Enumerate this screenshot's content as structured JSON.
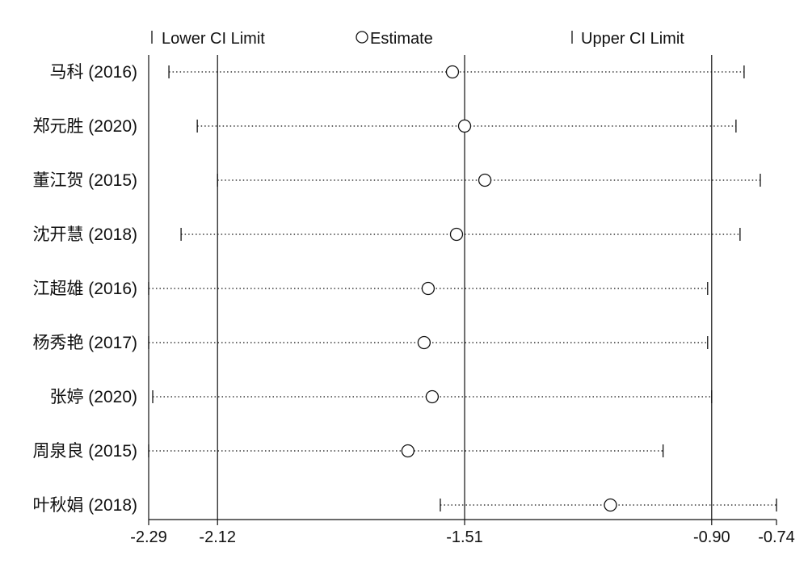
{
  "chart_data": {
    "type": "forest",
    "xlim": [
      -2.29,
      -0.74
    ],
    "x_ticks": [
      -2.29,
      -2.12,
      -1.51,
      -0.9,
      -0.74
    ],
    "x_tick_labels": [
      "-2.29",
      "-2.12",
      "-1.51",
      "-0.90",
      "-0.74"
    ],
    "reference_lines": [
      -2.12,
      -1.51,
      -0.9
    ],
    "legend": {
      "lower": "Lower CI Limit",
      "estimate": "Estimate",
      "upper": "Upper CI Limit"
    },
    "legend_position": "top",
    "studies": [
      {
        "label": "马科 (2016)",
        "lower": -2.24,
        "estimate": -1.54,
        "upper": -0.82
      },
      {
        "label": "郑元胜 (2020)",
        "lower": -2.17,
        "estimate": -1.51,
        "upper": -0.84
      },
      {
        "label": "董江贺 (2015)",
        "lower": -2.12,
        "estimate": -1.46,
        "upper": -0.78
      },
      {
        "label": "沈开慧 (2018)",
        "lower": -2.21,
        "estimate": -1.53,
        "upper": -0.83
      },
      {
        "label": "江超雄 (2016)",
        "lower": -2.29,
        "estimate": -1.6,
        "upper": -0.91
      },
      {
        "label": "杨秀艳 (2017)",
        "lower": -2.29,
        "estimate": -1.61,
        "upper": -0.91
      },
      {
        "label": "张婷 (2020)",
        "lower": -2.28,
        "estimate": -1.59,
        "upper": -0.9
      },
      {
        "label": "周泉良 (2015)",
        "lower": -2.29,
        "estimate": -1.65,
        "upper": -1.02
      },
      {
        "label": "叶秋娟 (2018)",
        "lower": -1.57,
        "estimate": -1.15,
        "upper": -0.74
      }
    ]
  }
}
